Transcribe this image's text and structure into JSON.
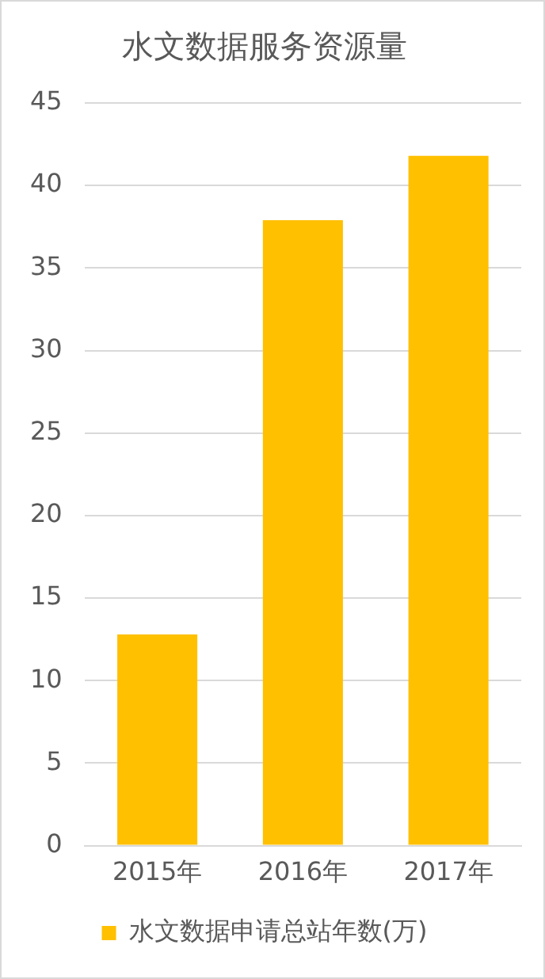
{
  "chart_data": {
    "type": "bar",
    "title": "水文数据服务资源量",
    "categories": [
      "2015年",
      "2016年",
      "2017年"
    ],
    "series": [
      {
        "name": "水文数据申请总站年数(万)",
        "color": "#ffc000",
        "values": [
          12.8,
          37.9,
          41.8
        ]
      }
    ],
    "ylim": [
      0,
      45
    ],
    "yticks": [
      0,
      5,
      10,
      15,
      20,
      25,
      30,
      35,
      40,
      45
    ],
    "grid": "y",
    "legend": "bottom"
  }
}
